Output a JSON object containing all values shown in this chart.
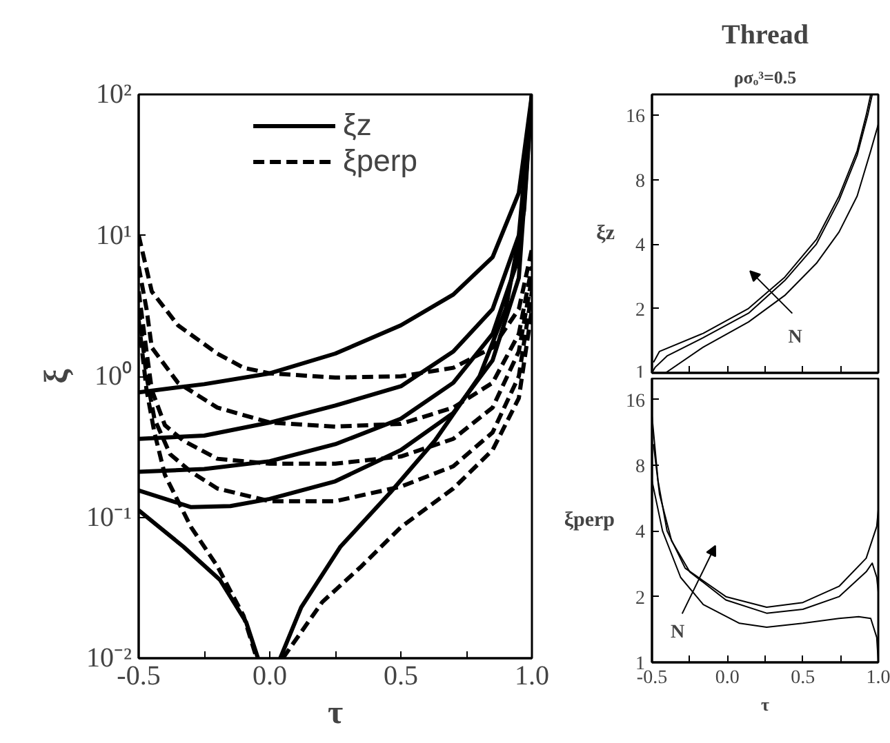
{
  "chart_data": [
    {
      "type": "line",
      "xlabel": "τ",
      "ylabel": "ξ",
      "log": "y",
      "grid": false,
      "legend": "top",
      "xlim": [
        -0.5,
        1.0
      ],
      "ylim": [
        0.01,
        100
      ],
      "xticks": [
        -0.5,
        {
          "value": -0.25,
          "label": null
        },
        {
          "value": 0,
          "label": "0.0"
        },
        {
          "value": 0.25,
          "label": null
        },
        0.5,
        {
          "value": 0.75,
          "label": null
        },
        {
          "value": 1,
          "label": "1.0"
        }
      ],
      "yticks": [
        {
          "value": 0.01,
          "label": "10⁻²"
        },
        {
          "value": 0.1,
          "label": "10⁻¹"
        },
        {
          "value": 1,
          "label": "10⁰"
        },
        {
          "value": 10,
          "label": "10¹"
        },
        {
          "value": 100,
          "label": "10²"
        }
      ],
      "series": [
        {
          "name": "ξz",
          "color": "#000000",
          "line_style": "solid",
          "x": [
            -0.5,
            -0.25,
            0,
            0.25,
            0.5,
            0.7,
            0.85,
            0.95,
            1.0
          ],
          "values": [
            0.77,
            0.88,
            1.05,
            1.45,
            2.3,
            3.8,
            7,
            20,
            100
          ]
        },
        {
          "color": "#000000",
          "line_style": "solid",
          "x": [
            -0.5,
            -0.25,
            0,
            0.25,
            0.5,
            0.7,
            0.85,
            0.95,
            1.0
          ],
          "values": [
            0.36,
            0.38,
            0.47,
            0.62,
            0.85,
            1.5,
            3,
            10,
            100
          ]
        },
        {
          "color": "#000000",
          "line_style": "solid",
          "x": [
            -0.5,
            -0.25,
            0,
            0.25,
            0.5,
            0.7,
            0.85,
            0.95,
            1.0
          ],
          "values": [
            0.21,
            0.22,
            0.25,
            0.33,
            0.5,
            0.9,
            2,
            7,
            100
          ]
        },
        {
          "color": "#000000",
          "line_style": "solid",
          "x": [
            -0.5,
            -0.3,
            -0.15,
            0,
            0.25,
            0.5,
            0.7,
            0.85,
            0.95,
            1.0
          ],
          "values": [
            0.155,
            0.118,
            0.12,
            0.135,
            0.18,
            0.3,
            0.55,
            1.3,
            5,
            100
          ]
        },
        {
          "color": "#000000",
          "line_style": "solid",
          "x": [
            -0.5,
            -0.33,
            -0.19,
            -0.09,
            -0.045,
            0,
            0.04,
            0.12,
            0.27,
            0.46,
            0.63,
            0.8,
            0.9,
            0.97,
            1.0
          ],
          "values": [
            0.112,
            0.062,
            0.036,
            0.018,
            0.01,
            null,
            0.01,
            0.023,
            0.062,
            0.15,
            0.35,
            1.0,
            3,
            15,
            100
          ]
        },
        {
          "name": "ξperp",
          "color": "#000000",
          "line_style": "dashed",
          "x": [
            -0.5,
            -0.45,
            -0.35,
            -0.2,
            -0.1,
            0,
            0.25,
            0.5,
            0.7,
            0.85,
            0.95,
            1.0
          ],
          "values": [
            10,
            4,
            2.3,
            1.45,
            1.15,
            1.05,
            0.98,
            1.0,
            1.15,
            1.6,
            3,
            8
          ]
        },
        {
          "color": "#000000",
          "line_style": "dashed",
          "x": [
            -0.5,
            -0.47,
            -0.45,
            -0.35,
            -0.2,
            0,
            0.25,
            0.5,
            0.7,
            0.85,
            0.95,
            1.0
          ],
          "values": [
            6,
            3,
            1.6,
            0.9,
            0.6,
            0.47,
            0.44,
            0.46,
            0.6,
            0.9,
            2,
            6
          ]
        },
        {
          "color": "#000000",
          "line_style": "dashed",
          "x": [
            -0.5,
            -0.47,
            -0.45,
            -0.4,
            -0.33,
            -0.2,
            0,
            0.25,
            0.5,
            0.7,
            0.85,
            0.95,
            1.0
          ],
          "values": [
            4,
            1.5,
            0.8,
            0.45,
            0.35,
            0.26,
            0.24,
            0.24,
            0.27,
            0.36,
            0.6,
            1.5,
            5
          ]
        },
        {
          "color": "#000000",
          "line_style": "dashed",
          "x": [
            -0.5,
            -0.47,
            -0.44,
            -0.38,
            -0.3,
            -0.2,
            0,
            0.25,
            0.5,
            0.7,
            0.85,
            0.95,
            1.0
          ],
          "values": [
            3,
            1,
            0.5,
            0.28,
            0.21,
            0.16,
            0.13,
            0.13,
            0.165,
            0.23,
            0.4,
            1,
            4
          ]
        },
        {
          "color": "#000000",
          "line_style": "dashed",
          "x": [
            -0.5,
            -0.47,
            -0.44,
            -0.4,
            -0.3,
            -0.2,
            -0.1,
            -0.05,
            0,
            0.05,
            0.2,
            0.35,
            0.5,
            0.7,
            0.85,
            0.95,
            1.0
          ],
          "values": [
            2.5,
            0.8,
            0.4,
            0.2,
            0.085,
            0.045,
            0.02,
            0.01,
            null,
            0.01,
            0.025,
            0.045,
            0.085,
            0.16,
            0.3,
            0.7,
            3
          ]
        }
      ]
    },
    {
      "type": "line",
      "title": "Thread",
      "subtitle": "ρσₒ³=0.5",
      "ylabel": "ξz",
      "log": "y",
      "grid": false,
      "tick_labels": "y",
      "xlim": [
        -0.5,
        1.0
      ],
      "ylim": [
        1,
        20
      ],
      "xticks": [
        -0.5,
        -0.25,
        0,
        0.25,
        0.5,
        0.75,
        1
      ],
      "yticks": [
        1,
        2,
        4,
        8,
        16
      ],
      "annotations": [
        "N"
      ],
      "series": [
        {
          "color": "#000000",
          "line_style": "solid",
          "x": [
            -0.49,
            -0.45,
            -0.16,
            0.14,
            0.38,
            0.59,
            0.74,
            0.86,
            0.92,
            0.95
          ],
          "values": [
            1.12,
            1.26,
            1.53,
            2.0,
            2.8,
            4.2,
            6.7,
            10.9,
            16,
            20
          ]
        },
        {
          "color": "#000000",
          "line_style": "solid",
          "x": [
            -0.5,
            -0.48,
            -0.4,
            -0.16,
            0.14,
            0.38,
            0.59,
            0.74,
            0.86,
            0.93,
            0.96
          ],
          "values": [
            1.0,
            1.06,
            1.2,
            1.46,
            1.9,
            2.7,
            4.0,
            6.4,
            10.4,
            16,
            20
          ]
        },
        {
          "color": "#000000",
          "line_style": "solid",
          "x": [
            -0.41,
            -0.16,
            0.14,
            0.38,
            0.59,
            0.74,
            0.86,
            0.95,
            1.0
          ],
          "values": [
            1.0,
            1.32,
            1.73,
            2.3,
            3.25,
            4.55,
            6.7,
            10.9,
            14.5
          ]
        }
      ]
    },
    {
      "type": "line",
      "xlabel": "τ",
      "ylabel": "ξperp",
      "log": "y",
      "grid": false,
      "xlim": [
        -0.5,
        1.0
      ],
      "ylim": [
        1,
        20
      ],
      "xticks": [
        -0.5,
        {
          "value": -0.25,
          "label": null
        },
        {
          "value": 0,
          "label": "0.0"
        },
        {
          "value": 0.25,
          "label": null
        },
        0.5,
        {
          "value": 0.75,
          "label": null
        },
        {
          "value": 1,
          "label": "1.0"
        }
      ],
      "yticks": [
        1,
        2,
        4,
        8,
        16
      ],
      "annotations": [
        "N"
      ],
      "series": [
        {
          "color": "#000000",
          "line_style": "solid",
          "x": [
            -0.5,
            -0.46,
            -0.4,
            -0.28,
            -0.01,
            0.26,
            0.5,
            0.74,
            0.92,
            0.99,
            1.0
          ],
          "values": [
            13.5,
            6.8,
            4.0,
            2.7,
            2.0,
            1.79,
            1.88,
            2.23,
            3.0,
            4.2,
            5.0
          ]
        },
        {
          "color": "#000000",
          "line_style": "solid",
          "x": [
            -0.49,
            -0.45,
            -0.37,
            -0.25,
            -0.01,
            0.26,
            0.5,
            0.74,
            0.92,
            0.96,
            0.99,
            1.0
          ],
          "values": [
            10,
            5.9,
            3.6,
            2.6,
            1.93,
            1.68,
            1.75,
            2.0,
            2.6,
            2.85,
            2.45,
            2.1
          ]
        },
        {
          "color": "#000000",
          "line_style": "solid",
          "x": [
            -0.5,
            -0.43,
            -0.31,
            -0.16,
            0.08,
            0.26,
            0.5,
            0.74,
            0.87,
            0.95,
            0.99,
            1.0
          ],
          "values": [
            6.8,
            4.0,
            2.45,
            1.84,
            1.51,
            1.45,
            1.51,
            1.59,
            1.62,
            1.59,
            1.3,
            1.0
          ]
        }
      ]
    }
  ]
}
